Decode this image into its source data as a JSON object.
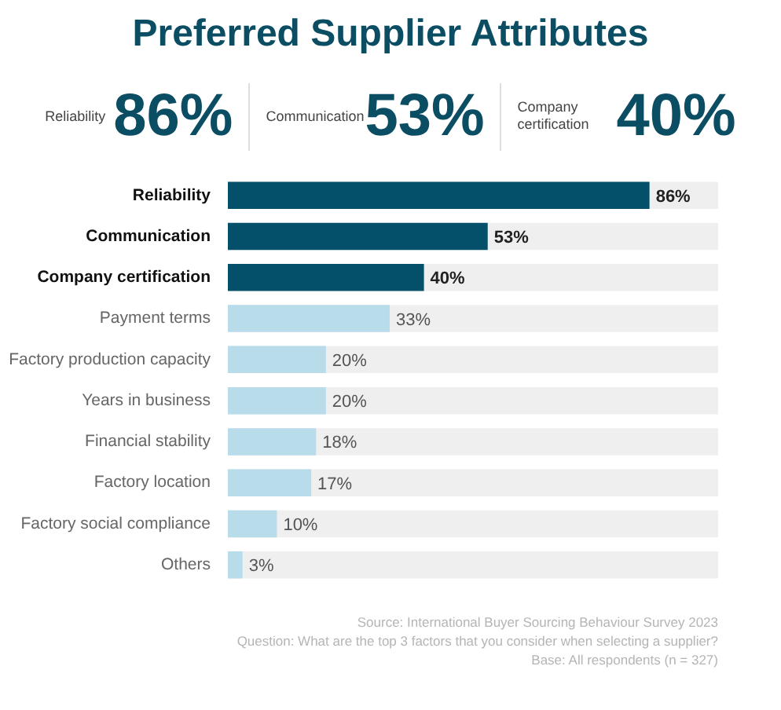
{
  "chart_data": {
    "type": "bar",
    "orientation": "horizontal",
    "title": "Preferred Supplier Attributes",
    "categories": [
      "Reliability",
      "Communication",
      "Company certification",
      "Payment terms",
      "Factory production capacity",
      "Years in business",
      "Financial stability",
      "Factory location",
      "Factory social compliance",
      "Others"
    ],
    "values": [
      86,
      53,
      40,
      33,
      20,
      20,
      18,
      17,
      10,
      3
    ],
    "colors": [
      "#04506a",
      "#04506a",
      "#04506a",
      "#b8dcea",
      "#b8dcea",
      "#b8dcea",
      "#b8dcea",
      "#b8dcea",
      "#b8dcea",
      "#b8dcea"
    ],
    "value_labels": [
      "86%",
      "53%",
      "40%",
      "33%",
      "20%",
      "20%",
      "18%",
      "17%",
      "10%",
      "3%"
    ],
    "xlim": [
      0,
      100
    ],
    "tick_labels": "y",
    "grid": false,
    "legend": false,
    "annotations": [
      "Source: International Buyer Sourcing Behaviour Survey 2023",
      "Question: What are the top 3 factors that you consider when selecting a supplier?",
      "Base: All respondents (n = 327)"
    ]
  }
}
